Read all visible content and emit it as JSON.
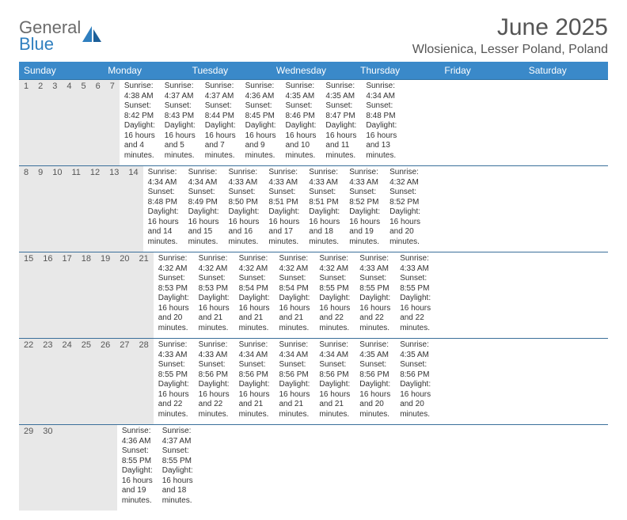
{
  "brand": {
    "line1": "General",
    "line2": "Blue"
  },
  "title": "June 2025",
  "location": "Wlosienica, Lesser Poland, Poland",
  "colors": {
    "header_bg": "#3a89c9",
    "header_text": "#ffffff",
    "daynum_bg": "#e8e8e8",
    "row_border": "#3a6f9a",
    "title_text": "#555555",
    "body_text": "#333333",
    "logo_gray": "#6b6b6b",
    "logo_blue": "#2f7fbf"
  },
  "weekdays": [
    "Sunday",
    "Monday",
    "Tuesday",
    "Wednesday",
    "Thursday",
    "Friday",
    "Saturday"
  ],
  "weeks": [
    [
      {
        "day": "1",
        "sunrise": "Sunrise: 4:38 AM",
        "sunset": "Sunset: 8:42 PM",
        "dl1": "Daylight: 16 hours",
        "dl2": "and 4 minutes."
      },
      {
        "day": "2",
        "sunrise": "Sunrise: 4:37 AM",
        "sunset": "Sunset: 8:43 PM",
        "dl1": "Daylight: 16 hours",
        "dl2": "and 5 minutes."
      },
      {
        "day": "3",
        "sunrise": "Sunrise: 4:37 AM",
        "sunset": "Sunset: 8:44 PM",
        "dl1": "Daylight: 16 hours",
        "dl2": "and 7 minutes."
      },
      {
        "day": "4",
        "sunrise": "Sunrise: 4:36 AM",
        "sunset": "Sunset: 8:45 PM",
        "dl1": "Daylight: 16 hours",
        "dl2": "and 9 minutes."
      },
      {
        "day": "5",
        "sunrise": "Sunrise: 4:35 AM",
        "sunset": "Sunset: 8:46 PM",
        "dl1": "Daylight: 16 hours",
        "dl2": "and 10 minutes."
      },
      {
        "day": "6",
        "sunrise": "Sunrise: 4:35 AM",
        "sunset": "Sunset: 8:47 PM",
        "dl1": "Daylight: 16 hours",
        "dl2": "and 11 minutes."
      },
      {
        "day": "7",
        "sunrise": "Sunrise: 4:34 AM",
        "sunset": "Sunset: 8:48 PM",
        "dl1": "Daylight: 16 hours",
        "dl2": "and 13 minutes."
      }
    ],
    [
      {
        "day": "8",
        "sunrise": "Sunrise: 4:34 AM",
        "sunset": "Sunset: 8:48 PM",
        "dl1": "Daylight: 16 hours",
        "dl2": "and 14 minutes."
      },
      {
        "day": "9",
        "sunrise": "Sunrise: 4:34 AM",
        "sunset": "Sunset: 8:49 PM",
        "dl1": "Daylight: 16 hours",
        "dl2": "and 15 minutes."
      },
      {
        "day": "10",
        "sunrise": "Sunrise: 4:33 AM",
        "sunset": "Sunset: 8:50 PM",
        "dl1": "Daylight: 16 hours",
        "dl2": "and 16 minutes."
      },
      {
        "day": "11",
        "sunrise": "Sunrise: 4:33 AM",
        "sunset": "Sunset: 8:51 PM",
        "dl1": "Daylight: 16 hours",
        "dl2": "and 17 minutes."
      },
      {
        "day": "12",
        "sunrise": "Sunrise: 4:33 AM",
        "sunset": "Sunset: 8:51 PM",
        "dl1": "Daylight: 16 hours",
        "dl2": "and 18 minutes."
      },
      {
        "day": "13",
        "sunrise": "Sunrise: 4:33 AM",
        "sunset": "Sunset: 8:52 PM",
        "dl1": "Daylight: 16 hours",
        "dl2": "and 19 minutes."
      },
      {
        "day": "14",
        "sunrise": "Sunrise: 4:32 AM",
        "sunset": "Sunset: 8:52 PM",
        "dl1": "Daylight: 16 hours",
        "dl2": "and 20 minutes."
      }
    ],
    [
      {
        "day": "15",
        "sunrise": "Sunrise: 4:32 AM",
        "sunset": "Sunset: 8:53 PM",
        "dl1": "Daylight: 16 hours",
        "dl2": "and 20 minutes."
      },
      {
        "day": "16",
        "sunrise": "Sunrise: 4:32 AM",
        "sunset": "Sunset: 8:53 PM",
        "dl1": "Daylight: 16 hours",
        "dl2": "and 21 minutes."
      },
      {
        "day": "17",
        "sunrise": "Sunrise: 4:32 AM",
        "sunset": "Sunset: 8:54 PM",
        "dl1": "Daylight: 16 hours",
        "dl2": "and 21 minutes."
      },
      {
        "day": "18",
        "sunrise": "Sunrise: 4:32 AM",
        "sunset": "Sunset: 8:54 PM",
        "dl1": "Daylight: 16 hours",
        "dl2": "and 21 minutes."
      },
      {
        "day": "19",
        "sunrise": "Sunrise: 4:32 AM",
        "sunset": "Sunset: 8:55 PM",
        "dl1": "Daylight: 16 hours",
        "dl2": "and 22 minutes."
      },
      {
        "day": "20",
        "sunrise": "Sunrise: 4:33 AM",
        "sunset": "Sunset: 8:55 PM",
        "dl1": "Daylight: 16 hours",
        "dl2": "and 22 minutes."
      },
      {
        "day": "21",
        "sunrise": "Sunrise: 4:33 AM",
        "sunset": "Sunset: 8:55 PM",
        "dl1": "Daylight: 16 hours",
        "dl2": "and 22 minutes."
      }
    ],
    [
      {
        "day": "22",
        "sunrise": "Sunrise: 4:33 AM",
        "sunset": "Sunset: 8:55 PM",
        "dl1": "Daylight: 16 hours",
        "dl2": "and 22 minutes."
      },
      {
        "day": "23",
        "sunrise": "Sunrise: 4:33 AM",
        "sunset": "Sunset: 8:56 PM",
        "dl1": "Daylight: 16 hours",
        "dl2": "and 22 minutes."
      },
      {
        "day": "24",
        "sunrise": "Sunrise: 4:34 AM",
        "sunset": "Sunset: 8:56 PM",
        "dl1": "Daylight: 16 hours",
        "dl2": "and 21 minutes."
      },
      {
        "day": "25",
        "sunrise": "Sunrise: 4:34 AM",
        "sunset": "Sunset: 8:56 PM",
        "dl1": "Daylight: 16 hours",
        "dl2": "and 21 minutes."
      },
      {
        "day": "26",
        "sunrise": "Sunrise: 4:34 AM",
        "sunset": "Sunset: 8:56 PM",
        "dl1": "Daylight: 16 hours",
        "dl2": "and 21 minutes."
      },
      {
        "day": "27",
        "sunrise": "Sunrise: 4:35 AM",
        "sunset": "Sunset: 8:56 PM",
        "dl1": "Daylight: 16 hours",
        "dl2": "and 20 minutes."
      },
      {
        "day": "28",
        "sunrise": "Sunrise: 4:35 AM",
        "sunset": "Sunset: 8:56 PM",
        "dl1": "Daylight: 16 hours",
        "dl2": "and 20 minutes."
      }
    ],
    [
      {
        "day": "29",
        "sunrise": "Sunrise: 4:36 AM",
        "sunset": "Sunset: 8:55 PM",
        "dl1": "Daylight: 16 hours",
        "dl2": "and 19 minutes."
      },
      {
        "day": "30",
        "sunrise": "Sunrise: 4:37 AM",
        "sunset": "Sunset: 8:55 PM",
        "dl1": "Daylight: 16 hours",
        "dl2": "and 18 minutes."
      },
      null,
      null,
      null,
      null,
      null
    ]
  ]
}
